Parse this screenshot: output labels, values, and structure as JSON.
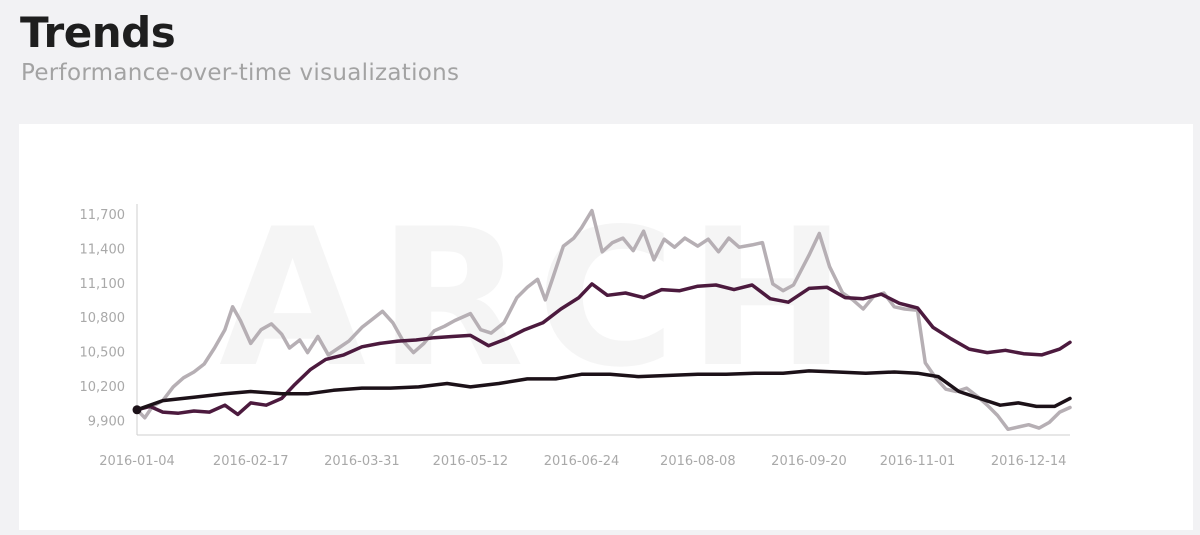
{
  "header": {
    "title": "Trends",
    "subtitle": "Performance-over-time visualizations"
  },
  "watermark": "ARCH",
  "colors": {
    "light": "#b6afb4",
    "purple": "#4c1a3e",
    "dark": "#1c1118",
    "axis": "#cfcfcf",
    "tick": "#a9a9a9"
  },
  "chart_data": {
    "type": "line",
    "x_ticks": [
      "2016-01-04",
      "2016-02-17",
      "2016-03-31",
      "2016-05-12",
      "2016-06-24",
      "2016-08-08",
      "2016-09-20",
      "2016-11-01",
      "2016-12-14"
    ],
    "y_ticks": [
      9900,
      10200,
      10500,
      10800,
      11100,
      11400,
      11700
    ],
    "y_tick_labels": [
      "9,900",
      "10,200",
      "10,500",
      "10,800",
      "11,100",
      "11,400",
      "11,700"
    ],
    "xlim": [
      "2016-01-04",
      "2016-12-30"
    ],
    "ylim": [
      9780,
      11780
    ],
    "grid": false,
    "legend": "none",
    "series": [
      {
        "color": "#b6afb4",
        "points": [
          [
            "2016-01-04",
            10000
          ],
          [
            "2016-01-07",
            9930
          ],
          [
            "2016-01-10",
            10030
          ],
          [
            "2016-01-14",
            10080
          ],
          [
            "2016-01-18",
            10200
          ],
          [
            "2016-01-22",
            10280
          ],
          [
            "2016-01-26",
            10330
          ],
          [
            "2016-01-30",
            10400
          ],
          [
            "2016-02-03",
            10540
          ],
          [
            "2016-02-07",
            10700
          ],
          [
            "2016-02-10",
            10900
          ],
          [
            "2016-02-13",
            10780
          ],
          [
            "2016-02-17",
            10580
          ],
          [
            "2016-02-21",
            10700
          ],
          [
            "2016-02-25",
            10750
          ],
          [
            "2016-02-29",
            10660
          ],
          [
            "2016-03-03",
            10540
          ],
          [
            "2016-03-07",
            10610
          ],
          [
            "2016-03-10",
            10500
          ],
          [
            "2016-03-14",
            10640
          ],
          [
            "2016-03-18",
            10480
          ],
          [
            "2016-03-22",
            10540
          ],
          [
            "2016-03-26",
            10600
          ],
          [
            "2016-03-31",
            10720
          ],
          [
            "2016-04-04",
            10790
          ],
          [
            "2016-04-08",
            10860
          ],
          [
            "2016-04-12",
            10760
          ],
          [
            "2016-04-16",
            10600
          ],
          [
            "2016-04-20",
            10500
          ],
          [
            "2016-04-24",
            10580
          ],
          [
            "2016-04-28",
            10690
          ],
          [
            "2016-05-02",
            10730
          ],
          [
            "2016-05-06",
            10780
          ],
          [
            "2016-05-12",
            10840
          ],
          [
            "2016-05-16",
            10700
          ],
          [
            "2016-05-20",
            10670
          ],
          [
            "2016-05-25",
            10760
          ],
          [
            "2016-05-30",
            10980
          ],
          [
            "2016-06-03",
            11070
          ],
          [
            "2016-06-07",
            11140
          ],
          [
            "2016-06-10",
            10960
          ],
          [
            "2016-06-13",
            11160
          ],
          [
            "2016-06-17",
            11430
          ],
          [
            "2016-06-21",
            11500
          ],
          [
            "2016-06-24",
            11590
          ],
          [
            "2016-06-28",
            11740
          ],
          [
            "2016-07-02",
            11380
          ],
          [
            "2016-07-06",
            11460
          ],
          [
            "2016-07-10",
            11500
          ],
          [
            "2016-07-14",
            11390
          ],
          [
            "2016-07-18",
            11560
          ],
          [
            "2016-07-22",
            11310
          ],
          [
            "2016-07-26",
            11490
          ],
          [
            "2016-07-30",
            11420
          ],
          [
            "2016-08-03",
            11500
          ],
          [
            "2016-08-08",
            11430
          ],
          [
            "2016-08-12",
            11490
          ],
          [
            "2016-08-16",
            11380
          ],
          [
            "2016-08-20",
            11500
          ],
          [
            "2016-08-24",
            11420
          ],
          [
            "2016-08-29",
            11440
          ],
          [
            "2016-09-02",
            11460
          ],
          [
            "2016-09-06",
            11100
          ],
          [
            "2016-09-10",
            11040
          ],
          [
            "2016-09-14",
            11090
          ],
          [
            "2016-09-20",
            11350
          ],
          [
            "2016-09-24",
            11540
          ],
          [
            "2016-09-28",
            11250
          ],
          [
            "2016-10-03",
            11020
          ],
          [
            "2016-10-07",
            10960
          ],
          [
            "2016-10-11",
            10880
          ],
          [
            "2016-10-15",
            10990
          ],
          [
            "2016-10-19",
            11020
          ],
          [
            "2016-10-23",
            10900
          ],
          [
            "2016-10-27",
            10880
          ],
          [
            "2016-11-01",
            10870
          ],
          [
            "2016-11-04",
            10410
          ],
          [
            "2016-11-08",
            10280
          ],
          [
            "2016-11-12",
            10180
          ],
          [
            "2016-11-16",
            10160
          ],
          [
            "2016-11-20",
            10190
          ],
          [
            "2016-11-24",
            10120
          ],
          [
            "2016-11-28",
            10040
          ],
          [
            "2016-12-02",
            9950
          ],
          [
            "2016-12-06",
            9830
          ],
          [
            "2016-12-10",
            9850
          ],
          [
            "2016-12-14",
            9870
          ],
          [
            "2016-12-18",
            9840
          ],
          [
            "2016-12-22",
            9890
          ],
          [
            "2016-12-26",
            9980
          ],
          [
            "2016-12-30",
            10020
          ]
        ]
      },
      {
        "color": "#4c1a3e",
        "points": [
          [
            "2016-01-04",
            10000
          ],
          [
            "2016-01-09",
            10030
          ],
          [
            "2016-01-14",
            9980
          ],
          [
            "2016-01-20",
            9970
          ],
          [
            "2016-01-26",
            9990
          ],
          [
            "2016-02-01",
            9980
          ],
          [
            "2016-02-07",
            10040
          ],
          [
            "2016-02-12",
            9960
          ],
          [
            "2016-02-17",
            10060
          ],
          [
            "2016-02-23",
            10040
          ],
          [
            "2016-02-29",
            10100
          ],
          [
            "2016-03-05",
            10220
          ],
          [
            "2016-03-11",
            10350
          ],
          [
            "2016-03-17",
            10440
          ],
          [
            "2016-03-24",
            10480
          ],
          [
            "2016-03-31",
            10550
          ],
          [
            "2016-04-07",
            10580
          ],
          [
            "2016-04-14",
            10600
          ],
          [
            "2016-04-21",
            10610
          ],
          [
            "2016-04-28",
            10630
          ],
          [
            "2016-05-05",
            10640
          ],
          [
            "2016-05-12",
            10650
          ],
          [
            "2016-05-19",
            10560
          ],
          [
            "2016-05-26",
            10620
          ],
          [
            "2016-06-02",
            10700
          ],
          [
            "2016-06-09",
            10760
          ],
          [
            "2016-06-16",
            10880
          ],
          [
            "2016-06-23",
            10980
          ],
          [
            "2016-06-28",
            11100
          ],
          [
            "2016-07-04",
            11000
          ],
          [
            "2016-07-11",
            11020
          ],
          [
            "2016-07-18",
            10980
          ],
          [
            "2016-07-25",
            11050
          ],
          [
            "2016-08-01",
            11040
          ],
          [
            "2016-08-08",
            11080
          ],
          [
            "2016-08-15",
            11090
          ],
          [
            "2016-08-22",
            11050
          ],
          [
            "2016-08-29",
            11090
          ],
          [
            "2016-09-05",
            10970
          ],
          [
            "2016-09-12",
            10940
          ],
          [
            "2016-09-20",
            11060
          ],
          [
            "2016-09-27",
            11070
          ],
          [
            "2016-10-04",
            10980
          ],
          [
            "2016-10-11",
            10970
          ],
          [
            "2016-10-18",
            11010
          ],
          [
            "2016-10-25",
            10930
          ],
          [
            "2016-11-01",
            10890
          ],
          [
            "2016-11-07",
            10720
          ],
          [
            "2016-11-14",
            10620
          ],
          [
            "2016-11-21",
            10530
          ],
          [
            "2016-11-28",
            10500
          ],
          [
            "2016-12-05",
            10520
          ],
          [
            "2016-12-12",
            10490
          ],
          [
            "2016-12-19",
            10480
          ],
          [
            "2016-12-26",
            10530
          ],
          [
            "2016-12-30",
            10590
          ]
        ]
      },
      {
        "color": "#1c1118",
        "points": [
          [
            "2016-01-04",
            10000
          ],
          [
            "2016-01-14",
            10080
          ],
          [
            "2016-01-26",
            10110
          ],
          [
            "2016-02-07",
            10140
          ],
          [
            "2016-02-17",
            10160
          ],
          [
            "2016-02-29",
            10140
          ],
          [
            "2016-03-10",
            10140
          ],
          [
            "2016-03-20",
            10170
          ],
          [
            "2016-03-31",
            10190
          ],
          [
            "2016-04-11",
            10190
          ],
          [
            "2016-04-22",
            10200
          ],
          [
            "2016-05-03",
            10230
          ],
          [
            "2016-05-12",
            10200
          ],
          [
            "2016-05-23",
            10230
          ],
          [
            "2016-06-03",
            10270
          ],
          [
            "2016-06-14",
            10270
          ],
          [
            "2016-06-24",
            10310
          ],
          [
            "2016-07-05",
            10310
          ],
          [
            "2016-07-16",
            10290
          ],
          [
            "2016-07-27",
            10300
          ],
          [
            "2016-08-08",
            10310
          ],
          [
            "2016-08-19",
            10310
          ],
          [
            "2016-08-30",
            10320
          ],
          [
            "2016-09-10",
            10320
          ],
          [
            "2016-09-20",
            10340
          ],
          [
            "2016-10-01",
            10330
          ],
          [
            "2016-10-12",
            10320
          ],
          [
            "2016-10-23",
            10330
          ],
          [
            "2016-11-01",
            10320
          ],
          [
            "2016-11-09",
            10290
          ],
          [
            "2016-11-17",
            10160
          ],
          [
            "2016-11-25",
            10100
          ],
          [
            "2016-12-03",
            10040
          ],
          [
            "2016-12-10",
            10060
          ],
          [
            "2016-12-17",
            10030
          ],
          [
            "2016-12-24",
            10030
          ],
          [
            "2016-12-30",
            10100
          ]
        ]
      }
    ]
  }
}
